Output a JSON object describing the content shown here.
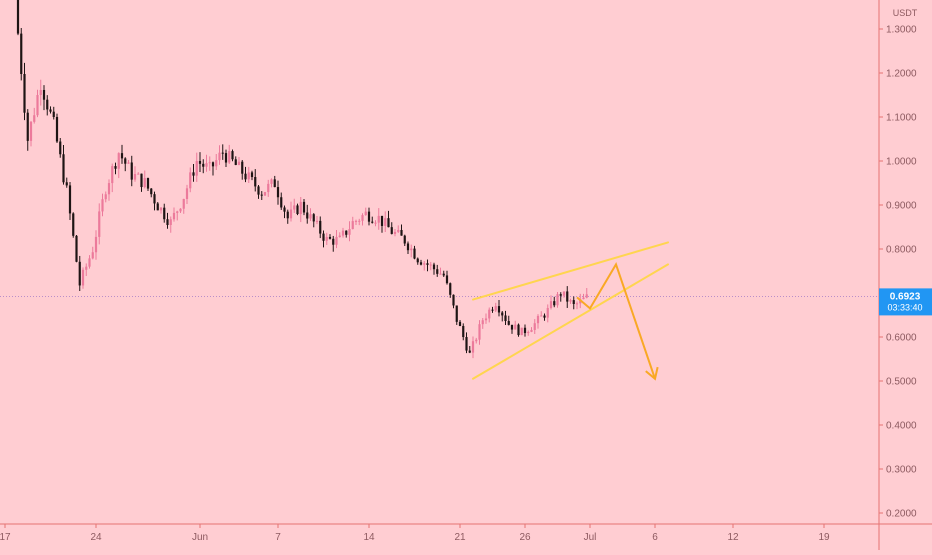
{
  "chart_data": {
    "type": "candlestick",
    "currency": "USDT",
    "price_scale": {
      "ticks": [
        "1.3000",
        "1.2000",
        "1.1000",
        "1.0000",
        "0.9000",
        "0.8000",
        "0.7000",
        "0.6000",
        "0.5000",
        "0.4000",
        "0.3000",
        "0.2000"
      ],
      "ylim": [
        0.17,
        1.37
      ]
    },
    "time_scale": {
      "ticks": [
        {
          "label": "17",
          "date": "2021-05-17"
        },
        {
          "label": "24",
          "date": "2021-05-24"
        },
        {
          "label": "Jun",
          "date": "2021-06-01"
        },
        {
          "label": "7",
          "date": "2021-06-07"
        },
        {
          "label": "14",
          "date": "2021-06-14"
        },
        {
          "label": "21",
          "date": "2021-06-21"
        },
        {
          "label": "26",
          "date": "2021-06-26"
        },
        {
          "label": "Jul",
          "date": "2021-07-01"
        },
        {
          "label": "6",
          "date": "2021-07-06"
        },
        {
          "label": "12",
          "date": "2021-07-12"
        },
        {
          "label": "19",
          "date": "2021-07-19"
        }
      ]
    },
    "current_price": {
      "value": "0.6923",
      "timer": "03:33:40"
    },
    "price_series": [
      {
        "date": "2021-05-18",
        "close": 1.37
      },
      {
        "date": "2021-05-19",
        "close": 1.05
      },
      {
        "date": "2021-05-20",
        "close": 1.18
      },
      {
        "date": "2021-05-21",
        "close": 1.08
      },
      {
        "date": "2021-05-22",
        "close": 0.93
      },
      {
        "date": "2021-05-23",
        "close": 0.72
      },
      {
        "date": "2021-05-24",
        "close": 0.8
      },
      {
        "date": "2021-05-25",
        "close": 0.94
      },
      {
        "date": "2021-05-26",
        "close": 1.02
      },
      {
        "date": "2021-05-27",
        "close": 0.97
      },
      {
        "date": "2021-05-28",
        "close": 0.95
      },
      {
        "date": "2021-05-29",
        "close": 0.9
      },
      {
        "date": "2021-05-30",
        "close": 0.86
      },
      {
        "date": "2021-05-31",
        "close": 0.92
      },
      {
        "date": "2021-06-01",
        "close": 1.0
      },
      {
        "date": "2021-06-02",
        "close": 0.98
      },
      {
        "date": "2021-06-03",
        "close": 1.02
      },
      {
        "date": "2021-06-04",
        "close": 0.99
      },
      {
        "date": "2021-06-05",
        "close": 0.96
      },
      {
        "date": "2021-06-06",
        "close": 0.93
      },
      {
        "date": "2021-06-07",
        "close": 0.95
      },
      {
        "date": "2021-06-08",
        "close": 0.87
      },
      {
        "date": "2021-06-09",
        "close": 0.9
      },
      {
        "date": "2021-06-10",
        "close": 0.86
      },
      {
        "date": "2021-06-11",
        "close": 0.82
      },
      {
        "date": "2021-06-12",
        "close": 0.82
      },
      {
        "date": "2021-06-13",
        "close": 0.86
      },
      {
        "date": "2021-06-14",
        "close": 0.88
      },
      {
        "date": "2021-06-15",
        "close": 0.87
      },
      {
        "date": "2021-06-16",
        "close": 0.84
      },
      {
        "date": "2021-06-17",
        "close": 0.82
      },
      {
        "date": "2021-06-18",
        "close": 0.78
      },
      {
        "date": "2021-06-19",
        "close": 0.76
      },
      {
        "date": "2021-06-20",
        "close": 0.74
      },
      {
        "date": "2021-06-21",
        "close": 0.64
      },
      {
        "date": "2021-06-22",
        "close": 0.56
      },
      {
        "date": "2021-06-23",
        "close": 0.64
      },
      {
        "date": "2021-06-24",
        "close": 0.68
      },
      {
        "date": "2021-06-25",
        "close": 0.63
      },
      {
        "date": "2021-06-26",
        "close": 0.61
      },
      {
        "date": "2021-06-27",
        "close": 0.63
      },
      {
        "date": "2021-06-28",
        "close": 0.66
      },
      {
        "date": "2021-06-29",
        "close": 0.7
      },
      {
        "date": "2021-06-30",
        "close": 0.67
      },
      {
        "date": "2021-07-01",
        "close": 0.69
      }
    ],
    "wedge_lines": [
      {
        "from": {
          "date": "2021-06-22",
          "price": 0.685
        },
        "to": {
          "date": "2021-07-07",
          "price": 0.815
        }
      },
      {
        "from": {
          "date": "2021-06-22",
          "price": 0.505
        },
        "to": {
          "date": "2021-07-07",
          "price": 0.765
        }
      }
    ],
    "projection_path": [
      {
        "date": "2021-06-30",
        "price": 0.69
      },
      {
        "date": "2021-07-01",
        "price": 0.665
      },
      {
        "date": "2021-07-03",
        "price": 0.765
      },
      {
        "date": "2021-07-06",
        "price": 0.505
      }
    ],
    "colors": {
      "background": "#ffcdd2",
      "candle_up": "#ec7a9b",
      "candle_down": "#1e1414",
      "wedge": "#ffd54f",
      "projection": "#f9a825",
      "price_label": "#2196f3"
    }
  }
}
